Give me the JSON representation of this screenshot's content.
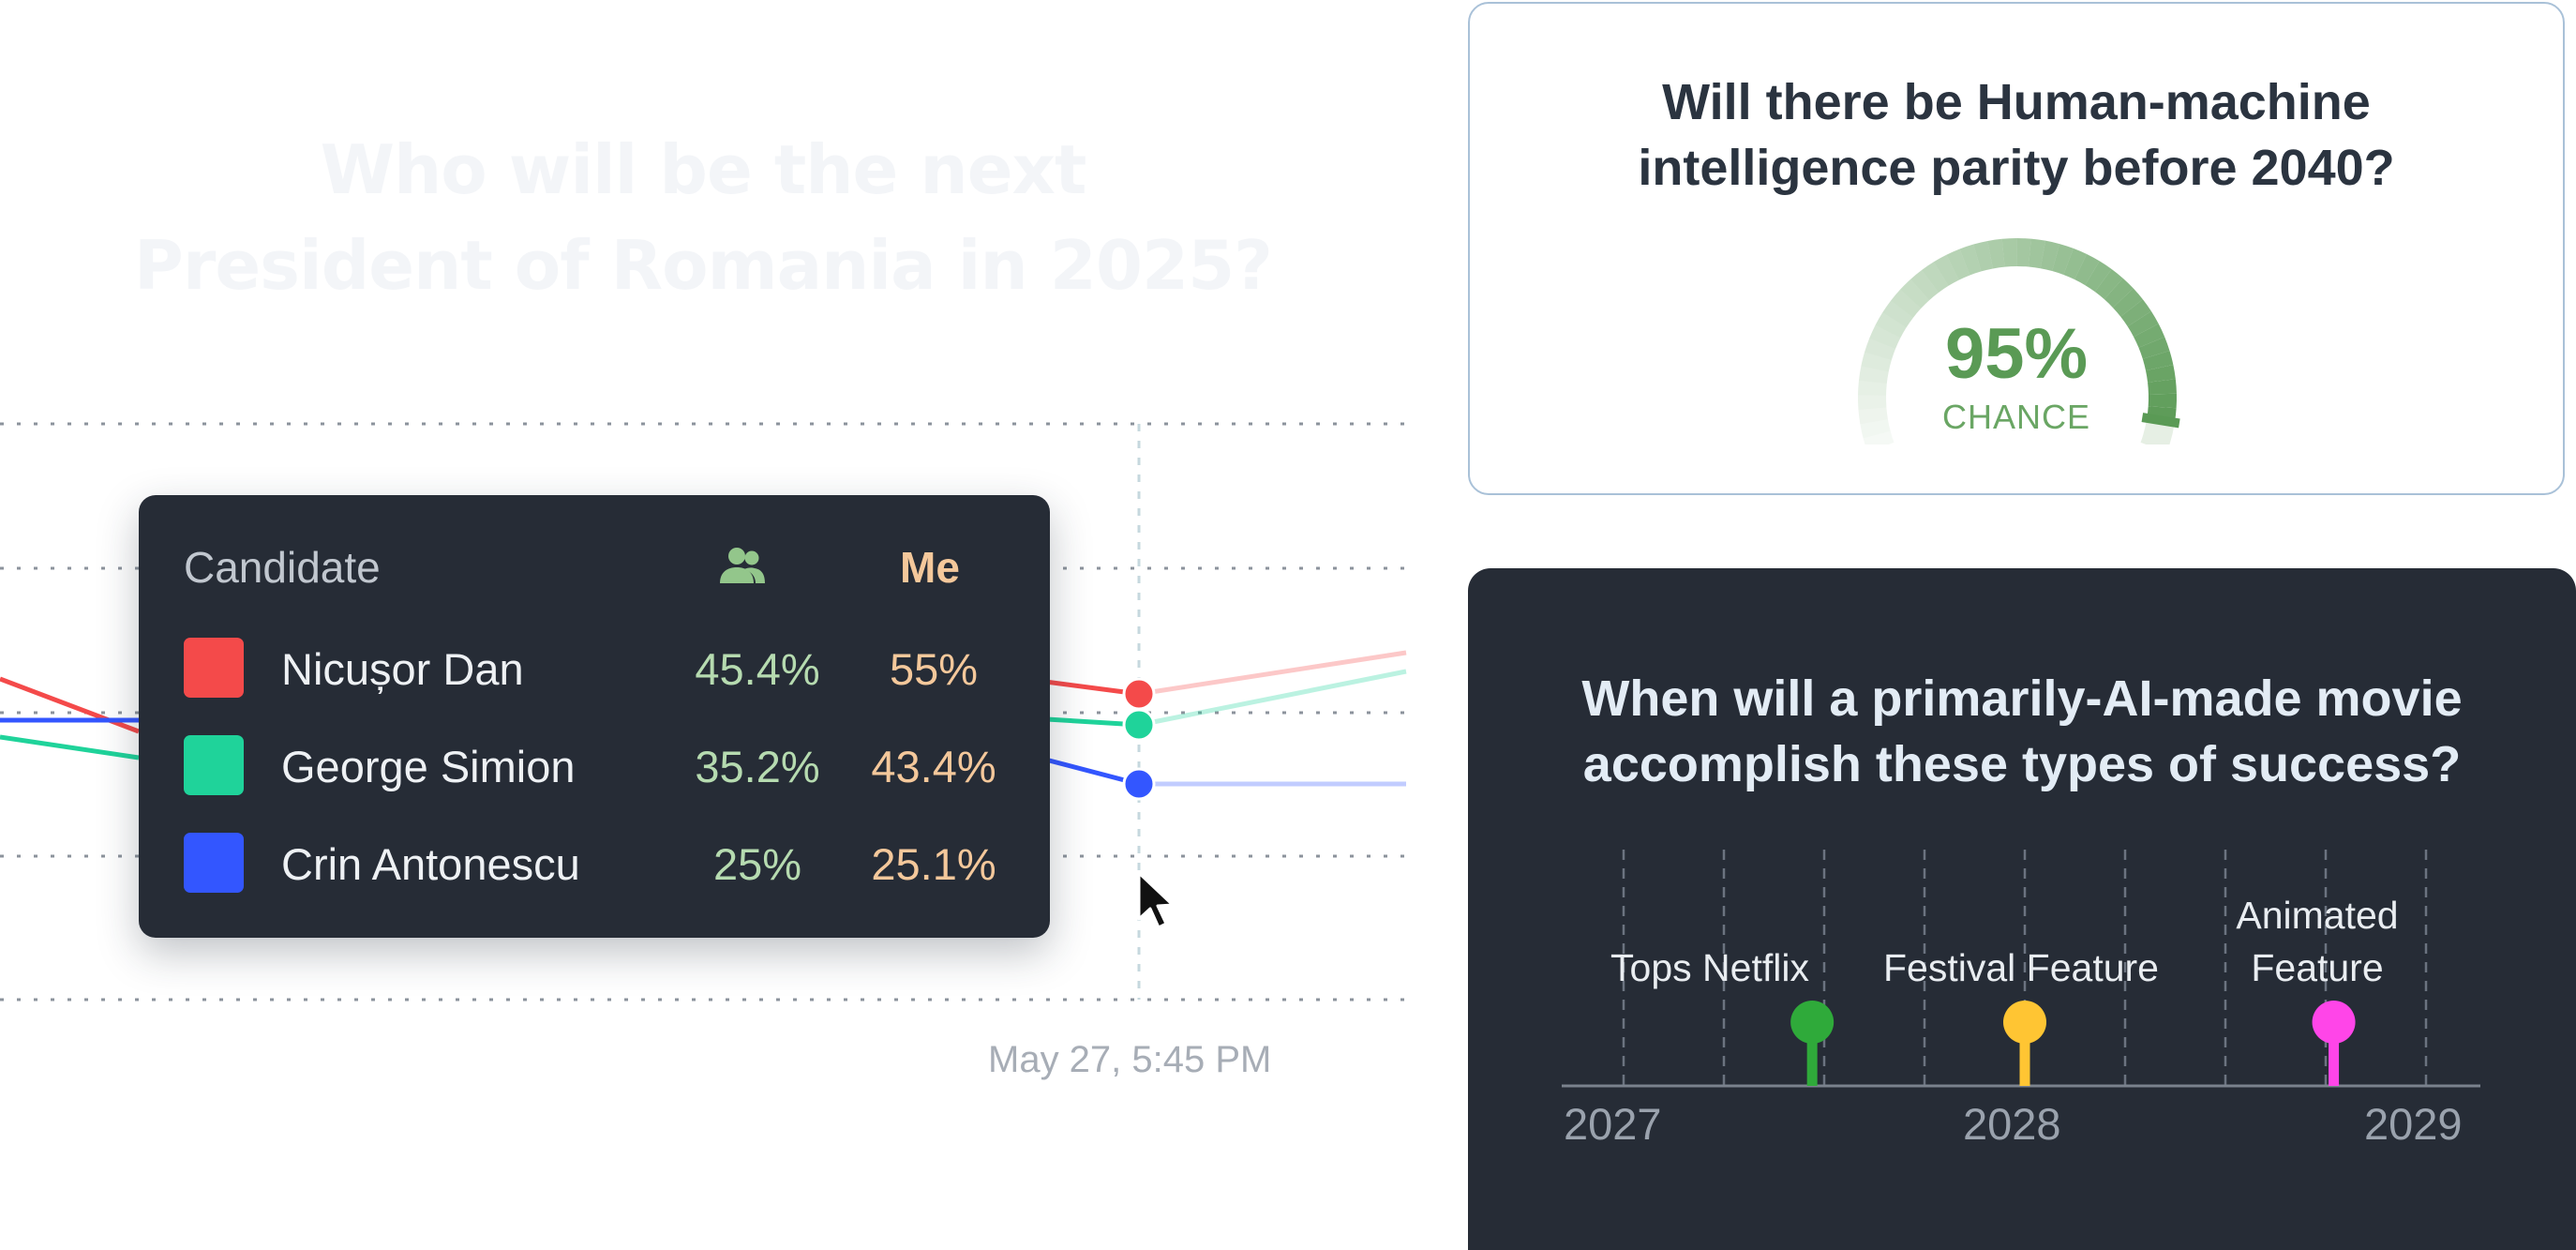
{
  "left_panel": {
    "title_line1": "Who will be the next",
    "title_line2": "President of Romania in 2025?",
    "hover_date": "May 27, 5:45 PM",
    "tooltip": {
      "header_candidate": "Candidate",
      "header_crowd_icon": "users-icon",
      "header_me": "Me",
      "rows": [
        {
          "name": "Nicușor Dan",
          "crowd": "45.4%",
          "me": "55%",
          "color": "#f44a4a"
        },
        {
          "name": "George Simion",
          "crowd": "35.2%",
          "me": "43.4%",
          "color": "#1fd39a"
        },
        {
          "name": "Crin Antonescu",
          "crowd": "25%",
          "me": "25.1%",
          "color": "#3356ff"
        }
      ]
    }
  },
  "parity_card": {
    "question_line1": "Will there be Human-machine",
    "question_line2": "intelligence parity before 2040?",
    "percent": "95%",
    "percent_value": 0.95,
    "chance_label": "CHANCE",
    "accent_color": "#5a9a55"
  },
  "movie_card": {
    "question_line1": "When will a primarily-AI-made movie",
    "question_line2": "accomplish these types of success?",
    "years": [
      "2027",
      "2028",
      "2029"
    ],
    "milestones": [
      {
        "label_line1": "Tops Netflix",
        "label_line2": "",
        "color": "#2faa3a",
        "year_value": 2027.47
      },
      {
        "label_line1": "Festival Feature",
        "label_line2": "",
        "color": "#ffc533",
        "year_value": 2028.0
      },
      {
        "label_line1": "Animated",
        "label_line2": "Feature",
        "color": "#ff45e8",
        "year_value": 2028.77
      }
    ]
  }
}
